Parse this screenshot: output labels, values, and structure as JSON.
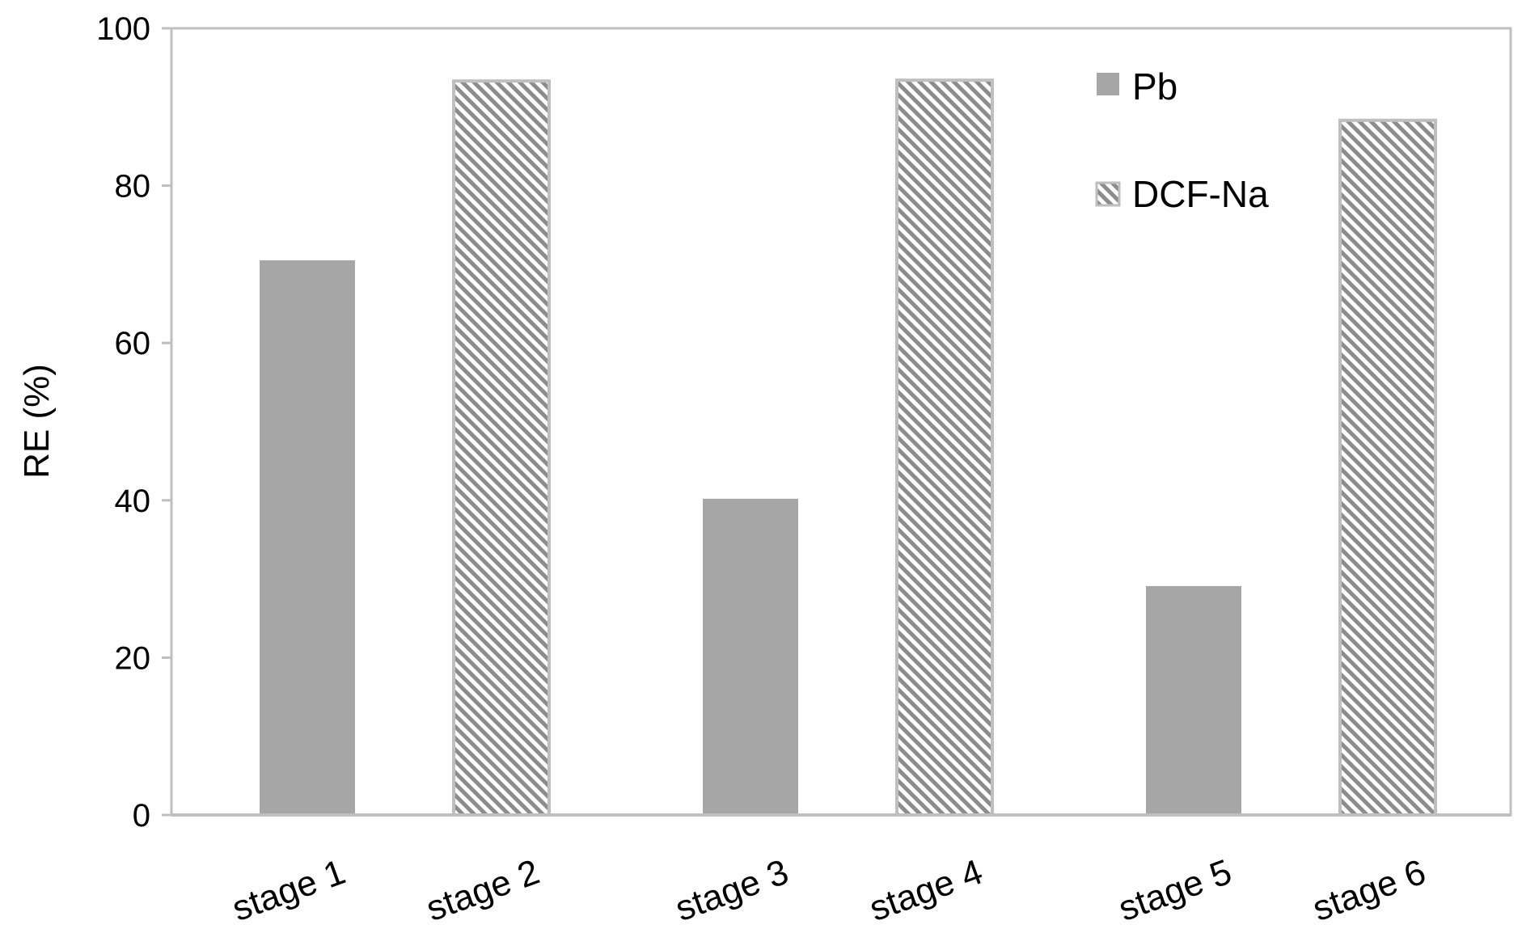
{
  "chart_data": {
    "type": "bar",
    "title": "",
    "xlabel": "",
    "ylabel": "RE (%)",
    "ylim": [
      0,
      100
    ],
    "yticks": [
      0,
      20,
      40,
      60,
      80,
      100
    ],
    "grid": false,
    "legend_position": "top-right",
    "categories": [
      "stage 1",
      "stage 2",
      "stage 3",
      "stage 4",
      "stage 5",
      "stage 6"
    ],
    "series": [
      {
        "name": "Pb",
        "fill": "solid",
        "color": "#a6a6a6",
        "points": [
          {
            "category": "stage 1",
            "value": 70.5
          },
          {
            "category": "stage 3",
            "value": 40.2
          },
          {
            "category": "stage 5",
            "value": 29.1
          }
        ]
      },
      {
        "name": "DCF-Na",
        "fill": "hatched",
        "color": "#a6a6a6",
        "points": [
          {
            "category": "stage 2",
            "value": 93.3
          },
          {
            "category": "stage 4",
            "value": 93.4
          },
          {
            "category": "stage 6",
            "value": 88.3
          }
        ]
      }
    ]
  }
}
